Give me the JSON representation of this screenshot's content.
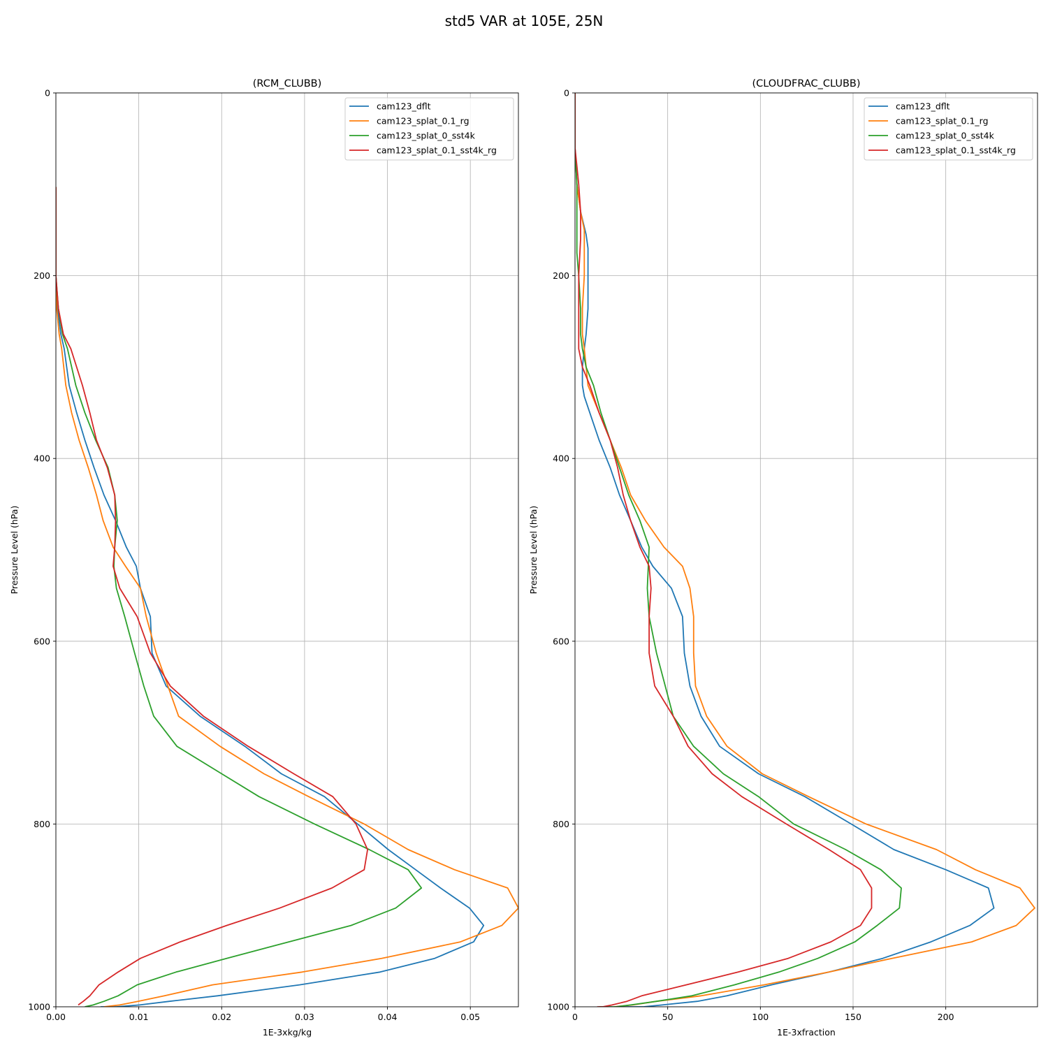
{
  "figure": {
    "title": "std5 VAR at 105E, 25N"
  },
  "legend": [
    "cam123_dflt",
    "cam123_splat_0.1_rg",
    "cam123_splat_0_sst4k",
    "cam123_splat_0.1_sst4k_rg"
  ],
  "colors": [
    "#1f77b4",
    "#ff7f0e",
    "#2ca02c",
    "#d62728"
  ],
  "chart_data": [
    {
      "type": "line",
      "title": "(RCM_CLUBB)",
      "xlabel": "1E-3xkg/kg",
      "ylabel": "Pressure Level (hPa)",
      "xlim": [
        0,
        0.0558
      ],
      "ylim": [
        1000,
        0
      ],
      "y_inverted": true,
      "grid": true,
      "legend_loc": "upper right",
      "xticks": [
        "0.00",
        "0.01",
        "0.02",
        "0.03",
        "0.04",
        "0.05"
      ],
      "xtick_values": [
        0,
        0.01,
        0.02,
        0.03,
        0.04,
        0.05
      ],
      "yticks": [
        "0",
        "200",
        "400",
        "600",
        "800",
        "1000"
      ],
      "ytick_values": [
        0,
        200,
        400,
        600,
        800,
        1000
      ],
      "series": [
        {
          "name": "cam123_dflt",
          "x": [
            0.0,
            0.0,
            0.0002,
            0.0006,
            0.001,
            0.0016,
            0.0025,
            0.0035,
            0.0046,
            0.0058,
            0.0072,
            0.0085,
            0.0097,
            0.0102,
            0.0114,
            0.0116,
            0.0133,
            0.0174,
            0.0228,
            0.0272,
            0.0324,
            0.0364,
            0.0401,
            0.0434,
            0.0464,
            0.0499,
            0.0516,
            0.0504,
            0.0457,
            0.0391,
            0.0294,
            0.0195,
            0.0137,
            0.0101,
            0.0073,
            0.0054
          ],
          "y": [
            103,
            200,
            236,
            264,
            280,
            320,
            350,
            380,
            410,
            440,
            468,
            497,
            518,
            542,
            573,
            613,
            649,
            682,
            715,
            745,
            770,
            800,
            828,
            850,
            870,
            892,
            911,
            929,
            947,
            962,
            976,
            988,
            994,
            998,
            1000,
            1000
          ]
        },
        {
          "name": "cam123_splat_0.1_rg",
          "x": [
            0.0,
            0.0,
            0.0001,
            0.0004,
            0.0007,
            0.0012,
            0.0019,
            0.0028,
            0.0039,
            0.0049,
            0.0057,
            0.0069,
            0.0084,
            0.0102,
            0.0109,
            0.0121,
            0.0148,
            0.0198,
            0.0251,
            0.0305,
            0.0372,
            0.0425,
            0.0481,
            0.0545,
            0.0558,
            0.0538,
            0.0488,
            0.0393,
            0.0297,
            0.0189,
            0.0131,
            0.0099,
            0.0077,
            0.0058
          ],
          "y": [
            103,
            200,
            236,
            264,
            280,
            320,
            350,
            380,
            410,
            440,
            468,
            497,
            518,
            542,
            573,
            613,
            682,
            715,
            745,
            770,
            800,
            828,
            850,
            870,
            892,
            911,
            929,
            947,
            962,
            976,
            988,
            994,
            998,
            1000
          ]
        },
        {
          "name": "cam123_splat_0_sst4k",
          "x": [
            0.0,
            0.0,
            0.0003,
            0.0008,
            0.0014,
            0.0024,
            0.0035,
            0.0048,
            0.0063,
            0.0071,
            0.0074,
            0.0071,
            0.007,
            0.0073,
            0.0083,
            0.0095,
            0.0106,
            0.0118,
            0.0146,
            0.02,
            0.0245,
            0.0312,
            0.0378,
            0.0425,
            0.0441,
            0.041,
            0.0356,
            0.0281,
            0.0206,
            0.0145,
            0.0098,
            0.0075,
            0.0058,
            0.0045,
            0.0035
          ],
          "y": [
            103,
            200,
            236,
            264,
            280,
            320,
            350,
            380,
            410,
            440,
            468,
            497,
            518,
            542,
            573,
            613,
            649,
            682,
            715,
            745,
            770,
            800,
            828,
            850,
            870,
            892,
            911,
            929,
            947,
            962,
            976,
            988,
            994,
            998,
            1000
          ]
        },
        {
          "name": "cam123_splat_0.1_sst4k_rg",
          "x": [
            0.0,
            0.0,
            0.0003,
            0.0009,
            0.0018,
            0.0032,
            0.0041,
            0.0049,
            0.0062,
            0.0071,
            0.0072,
            0.0071,
            0.0069,
            0.0077,
            0.0098,
            0.0114,
            0.0138,
            0.0178,
            0.0232,
            0.0287,
            0.0334,
            0.0362,
            0.0376,
            0.0372,
            0.0333,
            0.027,
            0.0206,
            0.015,
            0.0102,
            0.0075,
            0.0052,
            0.0041,
            0.0033,
            0.0027
          ],
          "y": [
            103,
            200,
            236,
            264,
            280,
            320,
            350,
            380,
            410,
            440,
            468,
            497,
            518,
            542,
            573,
            613,
            649,
            682,
            715,
            745,
            770,
            800,
            828,
            850,
            870,
            892,
            911,
            929,
            947,
            962,
            976,
            988,
            994,
            998
          ]
        }
      ]
    },
    {
      "type": "line",
      "title": "(CLOUDFRAC_CLUBB)",
      "xlabel": "1E-3xfraction",
      "ylabel": "Pressure Level (hPa)",
      "xlim": [
        0,
        249.5
      ],
      "ylim": [
        1000,
        0
      ],
      "y_inverted": true,
      "grid": true,
      "legend_loc": "upper right",
      "xticks": [
        "0",
        "50",
        "100",
        "150",
        "200"
      ],
      "xtick_values": [
        0,
        50,
        100,
        150,
        200
      ],
      "yticks": [
        "0",
        "200",
        "400",
        "600",
        "800",
        "1000"
      ],
      "ytick_values": [
        0,
        200,
        400,
        600,
        800,
        1000
      ],
      "series": [
        {
          "name": "cam123_dflt",
          "x": [
            0,
            0,
            1,
            3,
            6,
            7,
            7,
            7,
            6,
            5,
            4,
            4,
            5,
            8,
            13,
            19,
            24,
            30,
            36,
            42,
            52,
            58,
            59,
            62,
            68,
            78,
            99,
            124,
            149,
            172,
            200,
            223,
            226,
            213,
            192,
            166,
            137,
            106,
            82,
            66,
            47,
            37,
            26
          ],
          "y": [
            0,
            60,
            100,
            130,
            155,
            170,
            200,
            236,
            264,
            280,
            300,
            320,
            332,
            350,
            380,
            410,
            440,
            468,
            497,
            518,
            542,
            573,
            613,
            649,
            682,
            715,
            745,
            770,
            800,
            828,
            850,
            870,
            892,
            911,
            929,
            947,
            962,
            976,
            988,
            994,
            998,
            1000,
            1000
          ]
        },
        {
          "name": "cam123_splat_0.1_rg",
          "x": [
            0,
            0,
            1,
            3,
            5,
            5,
            5,
            4,
            4,
            5,
            7,
            13,
            19,
            25,
            30,
            38,
            48,
            58,
            62,
            64,
            64,
            65,
            71,
            82,
            101,
            126,
            157,
            195,
            216,
            240,
            248,
            238,
            214,
            171,
            137,
            102,
            68,
            44,
            31,
            21
          ],
          "y": [
            0,
            60,
            100,
            130,
            150,
            175,
            200,
            236,
            264,
            280,
            320,
            350,
            380,
            410,
            440,
            468,
            497,
            518,
            542,
            573,
            613,
            649,
            682,
            715,
            745,
            770,
            800,
            828,
            850,
            870,
            892,
            911,
            929,
            947,
            962,
            976,
            988,
            994,
            998,
            1000
          ]
        },
        {
          "name": "cam123_splat_0_sst4k",
          "x": [
            0,
            0,
            1,
            1,
            1,
            2,
            3,
            3,
            4,
            6,
            10,
            14,
            19,
            24,
            29,
            35,
            40,
            39,
            40,
            44,
            53,
            64,
            80,
            99,
            118,
            146,
            165,
            176,
            175,
            163,
            151,
            131,
            110,
            86,
            63,
            44,
            30,
            22,
            17,
            13
          ],
          "y": [
            0,
            60,
            100,
            130,
            175,
            200,
            236,
            264,
            280,
            300,
            320,
            350,
            380,
            410,
            440,
            468,
            497,
            542,
            573,
            613,
            682,
            715,
            745,
            770,
            800,
            828,
            850,
            870,
            892,
            911,
            929,
            947,
            962,
            976,
            988,
            994,
            998,
            1000,
            1000,
            1000
          ]
        },
        {
          "name": "cam123_splat_0.1_sst4k_rg",
          "x": [
            0,
            0,
            1,
            2,
            3,
            3,
            2,
            2,
            2,
            2,
            4,
            8,
            13,
            19,
            23,
            26,
            30,
            35,
            40,
            41,
            40,
            40,
            43,
            53,
            61,
            74,
            90,
            114,
            137,
            154,
            160,
            160,
            154,
            138,
            115,
            88,
            60,
            36,
            28,
            20,
            15,
            12
          ],
          "y": [
            0,
            60,
            80,
            100,
            130,
            160,
            200,
            236,
            264,
            280,
            300,
            320,
            350,
            380,
            410,
            440,
            468,
            497,
            518,
            542,
            573,
            613,
            649,
            682,
            715,
            745,
            770,
            800,
            828,
            850,
            870,
            892,
            911,
            929,
            947,
            962,
            976,
            988,
            994,
            998,
            1000,
            1000
          ]
        }
      ]
    }
  ]
}
